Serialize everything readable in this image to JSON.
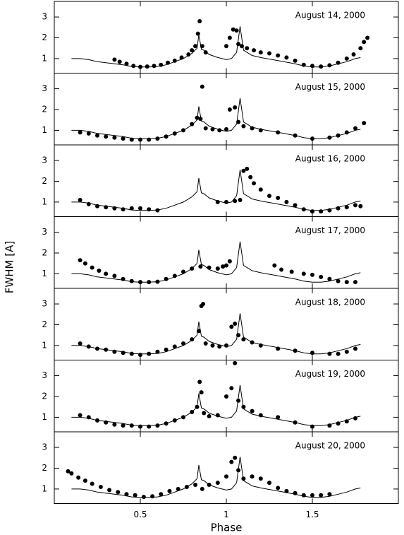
{
  "chart_data": [
    {
      "type": "scatter",
      "title": "August 14, 2000",
      "x": [
        0.35,
        0.38,
        0.42,
        0.46,
        0.5,
        0.54,
        0.58,
        0.62,
        0.66,
        0.7,
        0.74,
        0.78,
        0.8,
        0.82,
        0.835,
        0.845,
        0.86,
        0.88,
        1.0,
        1.02,
        1.04,
        1.06,
        1.07,
        1.09,
        1.12,
        1.16,
        1.2,
        1.25,
        1.3,
        1.35,
        1.4,
        1.45,
        1.5,
        1.55,
        1.6,
        1.65,
        1.7,
        1.74,
        1.78,
        1.8,
        1.82
      ],
      "values": [
        0.95,
        0.85,
        0.75,
        0.65,
        0.6,
        0.62,
        0.65,
        0.7,
        0.8,
        0.9,
        1.05,
        1.2,
        1.4,
        1.6,
        2.2,
        2.8,
        1.6,
        1.3,
        1.6,
        2.0,
        2.4,
        2.35,
        1.7,
        1.6,
        1.5,
        1.4,
        1.3,
        1.25,
        1.15,
        1.05,
        0.9,
        0.7,
        0.65,
        0.62,
        0.68,
        0.8,
        1.0,
        1.2,
        1.5,
        1.8,
        2.0
      ],
      "model": {
        "type": "line",
        "x": [
          0.1,
          0.15,
          0.2,
          0.25,
          0.3,
          0.35,
          0.4,
          0.45,
          0.5,
          0.55,
          0.6,
          0.65,
          0.7,
          0.75,
          0.8,
          0.83,
          0.84,
          0.855,
          0.87,
          0.9,
          0.95,
          1.0,
          1.03,
          1.06,
          1.08,
          1.1,
          1.15,
          1.2,
          1.3,
          1.4,
          1.45,
          1.5,
          1.55,
          1.6,
          1.65,
          1.7,
          1.75,
          1.78
        ],
        "values": [
          1.0,
          1.0,
          0.95,
          0.85,
          0.8,
          0.75,
          0.7,
          0.62,
          0.6,
          0.6,
          0.62,
          0.7,
          0.85,
          1.0,
          1.25,
          1.5,
          2.15,
          1.45,
          1.4,
          1.2,
          1.05,
          0.95,
          1.0,
          1.3,
          2.55,
          1.4,
          1.15,
          1.05,
          0.9,
          0.75,
          0.65,
          0.6,
          0.6,
          0.65,
          0.75,
          0.85,
          1.0,
          1.05
        ]
      },
      "color": "#000000",
      "xlim": [
        0,
        2
      ],
      "ylim": [
        0.3,
        3.75
      ],
      "xticks": [
        0.5,
        1,
        1.5
      ],
      "yticks": [
        1,
        2,
        3
      ]
    },
    {
      "type": "scatter",
      "title": "August 15, 2000",
      "x": [
        0.15,
        0.2,
        0.25,
        0.3,
        0.35,
        0.4,
        0.45,
        0.5,
        0.55,
        0.6,
        0.65,
        0.7,
        0.75,
        0.8,
        0.83,
        0.85,
        0.86,
        0.88,
        0.92,
        0.96,
        1.0,
        1.02,
        1.05,
        1.07,
        1.1,
        1.15,
        1.2,
        1.3,
        1.4,
        1.5,
        1.6,
        1.65,
        1.7,
        1.75,
        1.8
      ],
      "values": [
        0.9,
        0.85,
        0.75,
        0.7,
        0.65,
        0.6,
        0.55,
        0.55,
        0.55,
        0.6,
        0.7,
        0.85,
        1.0,
        1.3,
        1.6,
        1.55,
        3.1,
        1.1,
        1.05,
        1.0,
        1.05,
        2.0,
        2.1,
        1.4,
        1.2,
        1.1,
        1.0,
        0.9,
        0.75,
        0.6,
        0.65,
        0.75,
        0.9,
        1.1,
        1.35
      ],
      "model": {
        "type": "line",
        "x": [
          0.1,
          0.15,
          0.2,
          0.25,
          0.3,
          0.35,
          0.4,
          0.45,
          0.5,
          0.55,
          0.6,
          0.65,
          0.7,
          0.75,
          0.8,
          0.83,
          0.84,
          0.855,
          0.87,
          0.9,
          0.95,
          1.0,
          1.03,
          1.06,
          1.08,
          1.1,
          1.15,
          1.2,
          1.3,
          1.4,
          1.45,
          1.5,
          1.55,
          1.6,
          1.65,
          1.7,
          1.75,
          1.78
        ],
        "values": [
          1.0,
          1.0,
          0.95,
          0.85,
          0.8,
          0.75,
          0.7,
          0.62,
          0.6,
          0.6,
          0.62,
          0.7,
          0.85,
          1.0,
          1.25,
          1.5,
          2.15,
          1.45,
          1.4,
          1.2,
          1.05,
          0.95,
          1.0,
          1.3,
          2.55,
          1.4,
          1.15,
          1.05,
          0.9,
          0.75,
          0.65,
          0.6,
          0.6,
          0.65,
          0.75,
          0.85,
          1.0,
          1.05
        ]
      },
      "color": "#000000",
      "xlim": [
        0,
        2
      ],
      "ylim": [
        0.3,
        3.75
      ],
      "xticks": [
        0.5,
        1,
        1.5
      ],
      "yticks": [
        1,
        2,
        3
      ]
    },
    {
      "type": "scatter",
      "title": "August 16, 2000",
      "x": [
        0.15,
        0.2,
        0.25,
        0.3,
        0.35,
        0.4,
        0.45,
        0.5,
        0.55,
        0.6,
        0.95,
        1.0,
        1.05,
        1.08,
        1.1,
        1.12,
        1.14,
        1.16,
        1.2,
        1.25,
        1.3,
        1.35,
        1.4,
        1.45,
        1.5,
        1.55,
        1.6,
        1.65,
        1.7,
        1.75,
        1.78
      ],
      "values": [
        1.1,
        0.9,
        0.8,
        0.75,
        0.7,
        0.65,
        0.7,
        0.7,
        0.65,
        0.6,
        1.0,
        1.0,
        1.05,
        1.1,
        2.5,
        2.6,
        2.2,
        1.9,
        1.6,
        1.3,
        1.2,
        1.0,
        0.85,
        0.65,
        0.55,
        0.55,
        0.6,
        0.7,
        0.75,
        0.85,
        0.8
      ],
      "model": {
        "type": "line",
        "x": [
          0.1,
          0.15,
          0.2,
          0.25,
          0.3,
          0.35,
          0.4,
          0.45,
          0.5,
          0.55,
          0.6,
          0.65,
          0.7,
          0.75,
          0.8,
          0.83,
          0.84,
          0.855,
          0.87,
          0.9,
          0.95,
          1.0,
          1.03,
          1.06,
          1.08,
          1.1,
          1.15,
          1.2,
          1.3,
          1.4,
          1.45,
          1.5,
          1.55,
          1.6,
          1.65,
          1.7,
          1.75,
          1.78
        ],
        "values": [
          1.0,
          1.0,
          0.95,
          0.85,
          0.8,
          0.75,
          0.7,
          0.62,
          0.6,
          0.6,
          0.62,
          0.7,
          0.85,
          1.0,
          1.25,
          1.5,
          2.15,
          1.45,
          1.4,
          1.2,
          1.05,
          0.95,
          1.0,
          1.3,
          2.55,
          1.4,
          1.15,
          1.05,
          0.9,
          0.75,
          0.65,
          0.6,
          0.6,
          0.65,
          0.75,
          0.85,
          1.0,
          1.05
        ]
      },
      "color": "#000000",
      "xlim": [
        0,
        2
      ],
      "ylim": [
        0.3,
        3.75
      ],
      "xticks": [
        0.5,
        1,
        1.5
      ],
      "yticks": [
        1,
        2,
        3
      ]
    },
    {
      "type": "scatter",
      "title": "August 17, 2000",
      "ylabel": "FWHM [A]",
      "x": [
        0.15,
        0.18,
        0.22,
        0.26,
        0.3,
        0.35,
        0.4,
        0.45,
        0.5,
        0.55,
        0.6,
        0.65,
        0.7,
        0.75,
        0.8,
        0.85,
        0.9,
        0.95,
        0.98,
        1.0,
        1.02,
        1.28,
        1.32,
        1.38,
        1.45,
        1.5,
        1.55,
        1.6,
        1.65,
        1.7,
        1.75
      ],
      "values": [
        1.65,
        1.5,
        1.3,
        1.15,
        1.0,
        0.9,
        0.75,
        0.65,
        0.6,
        0.6,
        0.62,
        0.75,
        0.9,
        1.1,
        1.25,
        1.35,
        1.3,
        1.25,
        1.35,
        1.4,
        1.6,
        1.4,
        1.2,
        1.1,
        1.0,
        0.95,
        0.85,
        0.75,
        0.65,
        0.6,
        0.6
      ],
      "model": {
        "type": "line",
        "x": [
          0.1,
          0.15,
          0.2,
          0.25,
          0.3,
          0.35,
          0.4,
          0.45,
          0.5,
          0.55,
          0.6,
          0.65,
          0.7,
          0.75,
          0.8,
          0.83,
          0.84,
          0.855,
          0.87,
          0.9,
          0.95,
          1.0,
          1.03,
          1.06,
          1.08,
          1.1,
          1.15,
          1.2,
          1.3,
          1.4,
          1.45,
          1.5,
          1.55,
          1.6,
          1.65,
          1.7,
          1.75,
          1.78
        ],
        "values": [
          1.0,
          1.0,
          0.95,
          0.85,
          0.8,
          0.75,
          0.7,
          0.62,
          0.6,
          0.6,
          0.62,
          0.7,
          0.85,
          1.0,
          1.25,
          1.5,
          2.15,
          1.45,
          1.4,
          1.2,
          1.05,
          0.95,
          1.0,
          1.3,
          2.55,
          1.4,
          1.15,
          1.05,
          0.9,
          0.75,
          0.65,
          0.6,
          0.6,
          0.65,
          0.75,
          0.85,
          1.0,
          1.05
        ]
      },
      "color": "#000000",
      "xlim": [
        0,
        2
      ],
      "ylim": [
        0.3,
        3.75
      ],
      "xticks": [
        0.5,
        1,
        1.5
      ],
      "yticks": [
        1,
        2,
        3
      ]
    },
    {
      "type": "scatter",
      "title": "August 18, 2000",
      "x": [
        0.15,
        0.2,
        0.25,
        0.3,
        0.35,
        0.4,
        0.45,
        0.5,
        0.55,
        0.6,
        0.65,
        0.7,
        0.75,
        0.8,
        0.84,
        0.855,
        0.865,
        0.88,
        0.92,
        0.96,
        1.0,
        1.03,
        1.05,
        1.07,
        1.1,
        1.15,
        1.2,
        1.3,
        1.4,
        1.5,
        1.6,
        1.65,
        1.7,
        1.75
      ],
      "values": [
        1.1,
        0.95,
        0.85,
        0.8,
        0.7,
        0.65,
        0.6,
        0.55,
        0.6,
        0.7,
        0.8,
        0.95,
        1.1,
        1.3,
        1.7,
        2.9,
        3.0,
        1.1,
        1.0,
        0.95,
        1.0,
        1.9,
        2.05,
        1.5,
        1.3,
        1.15,
        1.0,
        0.85,
        0.75,
        0.65,
        0.6,
        0.6,
        0.7,
        0.85
      ],
      "model": {
        "type": "line",
        "x": [
          0.1,
          0.15,
          0.2,
          0.25,
          0.3,
          0.35,
          0.4,
          0.45,
          0.5,
          0.55,
          0.6,
          0.65,
          0.7,
          0.75,
          0.8,
          0.83,
          0.84,
          0.855,
          0.87,
          0.9,
          0.95,
          1.0,
          1.03,
          1.06,
          1.08,
          1.1,
          1.15,
          1.2,
          1.3,
          1.4,
          1.45,
          1.5,
          1.55,
          1.6,
          1.65,
          1.7,
          1.75,
          1.78
        ],
        "values": [
          1.0,
          1.0,
          0.95,
          0.85,
          0.8,
          0.75,
          0.7,
          0.62,
          0.6,
          0.6,
          0.62,
          0.7,
          0.85,
          1.0,
          1.25,
          1.5,
          2.15,
          1.45,
          1.4,
          1.2,
          1.05,
          0.95,
          1.0,
          1.3,
          2.55,
          1.4,
          1.15,
          1.05,
          0.9,
          0.75,
          0.65,
          0.6,
          0.6,
          0.65,
          0.75,
          0.85,
          1.0,
          1.05
        ]
      },
      "color": "#000000",
      "xlim": [
        0,
        2
      ],
      "ylim": [
        0.3,
        3.75
      ],
      "xticks": [
        0.5,
        1,
        1.5
      ],
      "yticks": [
        1,
        2,
        3
      ]
    },
    {
      "type": "scatter",
      "title": "August 19, 2000",
      "x": [
        0.15,
        0.2,
        0.25,
        0.3,
        0.35,
        0.4,
        0.45,
        0.5,
        0.55,
        0.6,
        0.65,
        0.7,
        0.75,
        0.8,
        0.83,
        0.845,
        0.855,
        0.87,
        0.9,
        0.95,
        1.0,
        1.03,
        1.05,
        1.07,
        1.1,
        1.15,
        1.2,
        1.3,
        1.4,
        1.5,
        1.6,
        1.65,
        1.7,
        1.75
      ],
      "values": [
        1.1,
        1.0,
        0.85,
        0.75,
        0.65,
        0.6,
        0.6,
        0.55,
        0.55,
        0.6,
        0.7,
        0.85,
        1.0,
        1.25,
        1.5,
        2.7,
        2.2,
        1.2,
        1.05,
        1.1,
        2.0,
        2.4,
        3.6,
        1.8,
        1.5,
        1.3,
        1.1,
        1.0,
        0.75,
        0.55,
        0.6,
        0.7,
        0.8,
        0.95
      ],
      "model": {
        "type": "line",
        "x": [
          0.1,
          0.15,
          0.2,
          0.25,
          0.3,
          0.35,
          0.4,
          0.45,
          0.5,
          0.55,
          0.6,
          0.65,
          0.7,
          0.75,
          0.8,
          0.83,
          0.84,
          0.855,
          0.87,
          0.9,
          0.95,
          1.0,
          1.03,
          1.06,
          1.08,
          1.1,
          1.15,
          1.2,
          1.3,
          1.4,
          1.45,
          1.5,
          1.55,
          1.6,
          1.65,
          1.7,
          1.75,
          1.78
        ],
        "values": [
          1.0,
          1.0,
          0.95,
          0.85,
          0.8,
          0.75,
          0.7,
          0.62,
          0.6,
          0.6,
          0.62,
          0.7,
          0.85,
          1.0,
          1.25,
          1.5,
          2.15,
          1.45,
          1.4,
          1.2,
          1.05,
          0.95,
          1.0,
          1.3,
          2.55,
          1.4,
          1.15,
          1.05,
          0.9,
          0.75,
          0.65,
          0.6,
          0.6,
          0.65,
          0.75,
          0.85,
          1.0,
          1.05
        ]
      },
      "color": "#000000",
      "xlim": [
        0,
        2
      ],
      "ylim": [
        0.3,
        3.75
      ],
      "xticks": [
        0.5,
        1,
        1.5
      ],
      "yticks": [
        1,
        2,
        3
      ]
    },
    {
      "type": "scatter",
      "title": "August 20, 2000",
      "xlabel": "Phase",
      "x": [
        0.08,
        0.1,
        0.14,
        0.18,
        0.22,
        0.27,
        0.32,
        0.37,
        0.42,
        0.47,
        0.52,
        0.57,
        0.62,
        0.67,
        0.72,
        0.77,
        0.82,
        0.86,
        0.9,
        0.95,
        1.0,
        1.03,
        1.05,
        1.07,
        1.1,
        1.15,
        1.2,
        1.25,
        1.3,
        1.35,
        1.4,
        1.45,
        1.5,
        1.55,
        1.6
      ],
      "values": [
        1.85,
        1.75,
        1.55,
        1.4,
        1.25,
        1.1,
        0.95,
        0.85,
        0.75,
        0.7,
        0.62,
        0.65,
        0.75,
        0.9,
        1.0,
        1.1,
        1.2,
        1.0,
        1.2,
        1.3,
        1.6,
        2.3,
        2.5,
        1.9,
        1.5,
        1.6,
        1.5,
        1.3,
        1.05,
        0.9,
        0.8,
        0.7,
        0.7,
        0.7,
        0.75
      ],
      "model": {
        "type": "line",
        "x": [
          0.1,
          0.15,
          0.2,
          0.25,
          0.3,
          0.35,
          0.4,
          0.45,
          0.5,
          0.55,
          0.6,
          0.65,
          0.7,
          0.75,
          0.8,
          0.83,
          0.84,
          0.855,
          0.87,
          0.9,
          0.95,
          1.0,
          1.03,
          1.06,
          1.08,
          1.1,
          1.15,
          1.2,
          1.3,
          1.4,
          1.45,
          1.5,
          1.55,
          1.6,
          1.65,
          1.7,
          1.75,
          1.78
        ],
        "values": [
          1.0,
          1.0,
          0.95,
          0.85,
          0.8,
          0.75,
          0.7,
          0.62,
          0.6,
          0.6,
          0.62,
          0.7,
          0.85,
          1.0,
          1.25,
          1.5,
          2.15,
          1.45,
          1.4,
          1.2,
          1.05,
          0.95,
          1.0,
          1.3,
          2.55,
          1.4,
          1.15,
          1.05,
          0.9,
          0.75,
          0.65,
          0.6,
          0.6,
          0.65,
          0.75,
          0.85,
          1.0,
          1.05
        ]
      },
      "color": "#000000",
      "xlim": [
        0,
        2
      ],
      "ylim": [
        0.3,
        3.75
      ],
      "xticks": [
        0.5,
        1,
        1.5
      ],
      "yticks": [
        1,
        2,
        3
      ]
    }
  ]
}
